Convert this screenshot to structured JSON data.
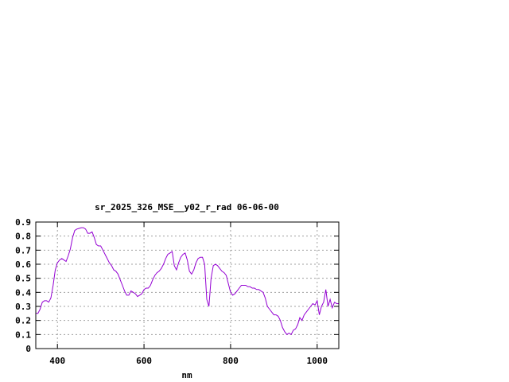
{
  "chart_data": {
    "type": "line",
    "title": "sr_2025_326_MSE__y02_r_rad 06-06-00",
    "xlabel": "nm",
    "ylabel": "",
    "xlim": [
      350,
      1050
    ],
    "ylim": [
      0,
      0.9
    ],
    "x_ticks": [
      400,
      600,
      800,
      1000
    ],
    "y_ticks": [
      0,
      0.1,
      0.2,
      0.3,
      0.4,
      0.5,
      0.6,
      0.7,
      0.8,
      0.9
    ],
    "x_tick_labels": [
      "400",
      "600",
      "800",
      "1000"
    ],
    "y_tick_labels": [
      "0",
      "0.1",
      "0.2",
      "0.3",
      "0.4",
      "0.5",
      "0.6",
      "0.7",
      "0.8",
      "0.9"
    ],
    "grid": true,
    "line_color": "#9400d3",
    "series": [
      {
        "x": [
          350,
          355,
          360,
          365,
          370,
          375,
          380,
          385,
          390,
          395,
          400,
          405,
          410,
          415,
          420,
          425,
          430,
          435,
          440,
          445,
          450,
          455,
          460,
          465,
          470,
          475,
          480,
          485,
          490,
          495,
          500,
          505,
          510,
          515,
          520,
          525,
          530,
          535,
          540,
          545,
          550,
          555,
          560,
          565,
          570,
          575,
          580,
          585,
          590,
          595,
          600,
          605,
          610,
          615,
          620,
          625,
          630,
          635,
          640,
          645,
          650,
          655,
          660,
          665,
          670,
          675,
          680,
          685,
          690,
          695,
          700,
          705,
          710,
          715,
          720,
          725,
          730,
          735,
          740,
          745,
          750,
          755,
          760,
          765,
          770,
          775,
          780,
          785,
          790,
          795,
          800,
          805,
          810,
          815,
          820,
          825,
          830,
          835,
          840,
          845,
          850,
          855,
          860,
          865,
          870,
          875,
          880,
          885,
          890,
          895,
          900,
          905,
          910,
          915,
          920,
          925,
          930,
          935,
          940,
          945,
          950,
          955,
          960,
          965,
          970,
          975,
          980,
          985,
          990,
          995,
          1000,
          1005,
          1010,
          1015,
          1020,
          1025,
          1030,
          1035,
          1040,
          1045,
          1050
        ],
        "y": [
          0.25,
          0.25,
          0.28,
          0.33,
          0.34,
          0.34,
          0.33,
          0.36,
          0.45,
          0.56,
          0.61,
          0.63,
          0.64,
          0.63,
          0.62,
          0.66,
          0.71,
          0.79,
          0.84,
          0.85,
          0.855,
          0.86,
          0.86,
          0.85,
          0.82,
          0.82,
          0.83,
          0.79,
          0.74,
          0.73,
          0.73,
          0.7,
          0.67,
          0.64,
          0.61,
          0.59,
          0.56,
          0.55,
          0.53,
          0.49,
          0.45,
          0.41,
          0.38,
          0.38,
          0.41,
          0.4,
          0.39,
          0.37,
          0.38,
          0.39,
          0.42,
          0.43,
          0.43,
          0.45,
          0.49,
          0.52,
          0.54,
          0.55,
          0.57,
          0.6,
          0.64,
          0.67,
          0.68,
          0.69,
          0.59,
          0.56,
          0.61,
          0.65,
          0.67,
          0.68,
          0.63,
          0.55,
          0.53,
          0.56,
          0.61,
          0.64,
          0.65,
          0.65,
          0.6,
          0.35,
          0.3,
          0.5,
          0.59,
          0.6,
          0.59,
          0.57,
          0.55,
          0.54,
          0.52,
          0.46,
          0.4,
          0.38,
          0.39,
          0.41,
          0.43,
          0.45,
          0.45,
          0.45,
          0.44,
          0.44,
          0.43,
          0.43,
          0.42,
          0.42,
          0.41,
          0.4,
          0.36,
          0.3,
          0.28,
          0.26,
          0.24,
          0.24,
          0.23,
          0.2,
          0.15,
          0.12,
          0.1,
          0.11,
          0.1,
          0.13,
          0.14,
          0.17,
          0.22,
          0.2,
          0.24,
          0.26,
          0.28,
          0.3,
          0.32,
          0.31,
          0.34,
          0.24,
          0.3,
          0.33,
          0.42,
          0.3,
          0.35,
          0.29,
          0.33,
          0.32,
          0.32
        ]
      }
    ]
  }
}
